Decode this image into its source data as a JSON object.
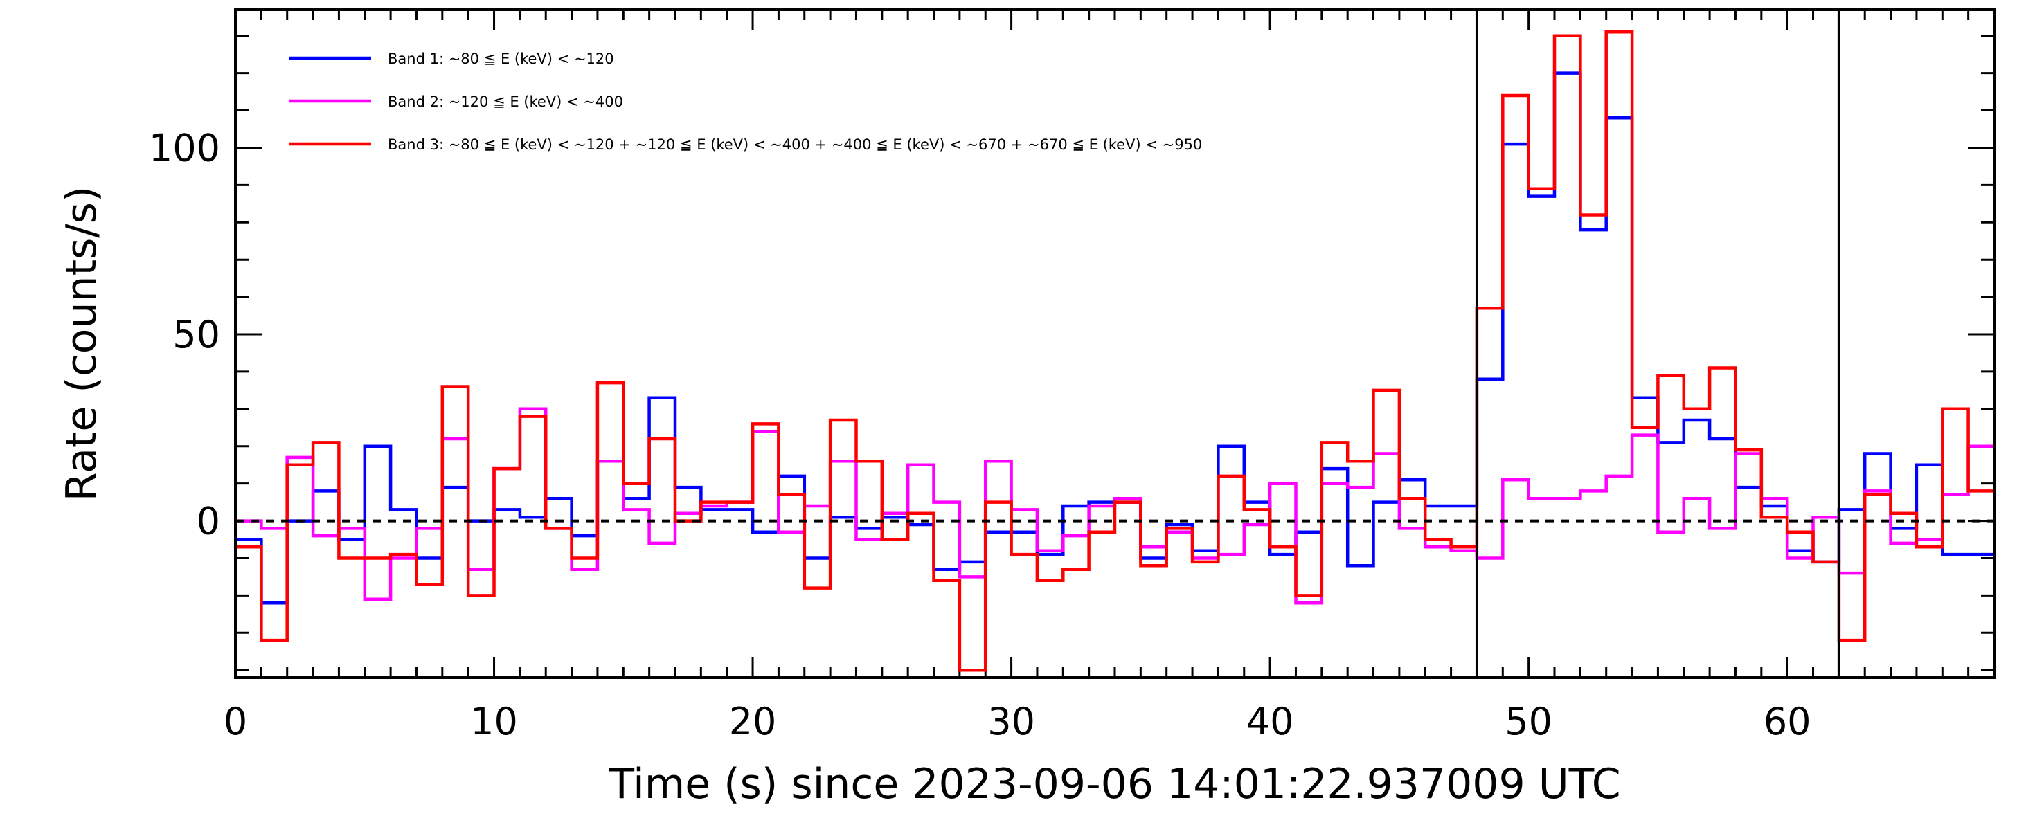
{
  "chart_data": {
    "type": "line",
    "step": true,
    "xlabel": "Time (s) since 2023-09-06 14:01:22.937009 UTC",
    "ylabel": "Rate (counts/s)",
    "xlim": [
      0,
      68
    ],
    "ylim": [
      -42,
      137
    ],
    "xticks": [
      0,
      10,
      20,
      30,
      40,
      50,
      60
    ],
    "yticks": [
      0,
      50,
      100
    ],
    "reference_line_y": 0,
    "vertical_markers": [
      48.0,
      62.0
    ],
    "bin_width": 1.0,
    "x_start": 0,
    "legend_position": "top-left",
    "series": [
      {
        "name": "Band 1: ~80 ≦ E (keV) < ~120",
        "color": "#0000ff",
        "values": [
          -5,
          -22,
          0,
          8,
          -5,
          20,
          3,
          -10,
          9,
          0,
          3,
          1,
          6,
          -4,
          16,
          6,
          33,
          9,
          3,
          3,
          -3,
          12,
          -10,
          1,
          -2,
          1,
          -1,
          -13,
          -11,
          -3,
          -3,
          -9,
          4,
          5,
          5,
          -10,
          -1,
          -8,
          20,
          5,
          -9,
          -3,
          14,
          -12,
          5,
          11,
          4,
          4,
          38,
          101,
          87,
          120,
          78,
          108,
          33,
          21,
          27,
          22,
          9,
          4,
          -8,
          -11,
          3,
          18,
          -2,
          15,
          -9,
          -9
        ]
      },
      {
        "name": "Band 2: ~120 ≦ E (keV) < ~400",
        "color": "#ff00ff",
        "values": [
          0,
          -2,
          17,
          -4,
          -2,
          -21,
          -10,
          -2,
          22,
          -13,
          14,
          30,
          -2,
          -13,
          16,
          3,
          -6,
          2,
          4,
          5,
          24,
          -3,
          4,
          16,
          -5,
          2,
          15,
          5,
          -15,
          16,
          3,
          -8,
          -4,
          4,
          6,
          -7,
          -3,
          -10,
          -9,
          -1,
          10,
          -22,
          10,
          9,
          18,
          -2,
          -7,
          -8,
          -10,
          11,
          6,
          6,
          8,
          12,
          23,
          -3,
          6,
          -2,
          18,
          6,
          -10,
          1,
          -14,
          8,
          -6,
          -5,
          7,
          20
        ]
      },
      {
        "name": "Band 3: ~80 ≦ E (keV) < ~120 + ~120 ≦ E (keV) < ~400 + ~400 ≦ E (keV) < ~670 + ~670 ≦ E (keV) < ~950",
        "color": "#ff0000",
        "values": [
          -7,
          -32,
          15,
          21,
          -10,
          -10,
          -9,
          -17,
          36,
          -20,
          14,
          28,
          -2,
          -10,
          37,
          10,
          22,
          0,
          5,
          5,
          26,
          7,
          -18,
          27,
          16,
          -5,
          2,
          -16,
          -40,
          5,
          -9,
          -16,
          -13,
          -3,
          5,
          -12,
          -2,
          -11,
          12,
          3,
          -7,
          -20,
          21,
          16,
          35,
          6,
          -5,
          -7,
          57,
          114,
          89,
          130,
          82,
          131,
          25,
          39,
          30,
          41,
          19,
          1,
          -3,
          -11,
          -32,
          7,
          2,
          -7,
          30,
          8
        ]
      }
    ]
  }
}
